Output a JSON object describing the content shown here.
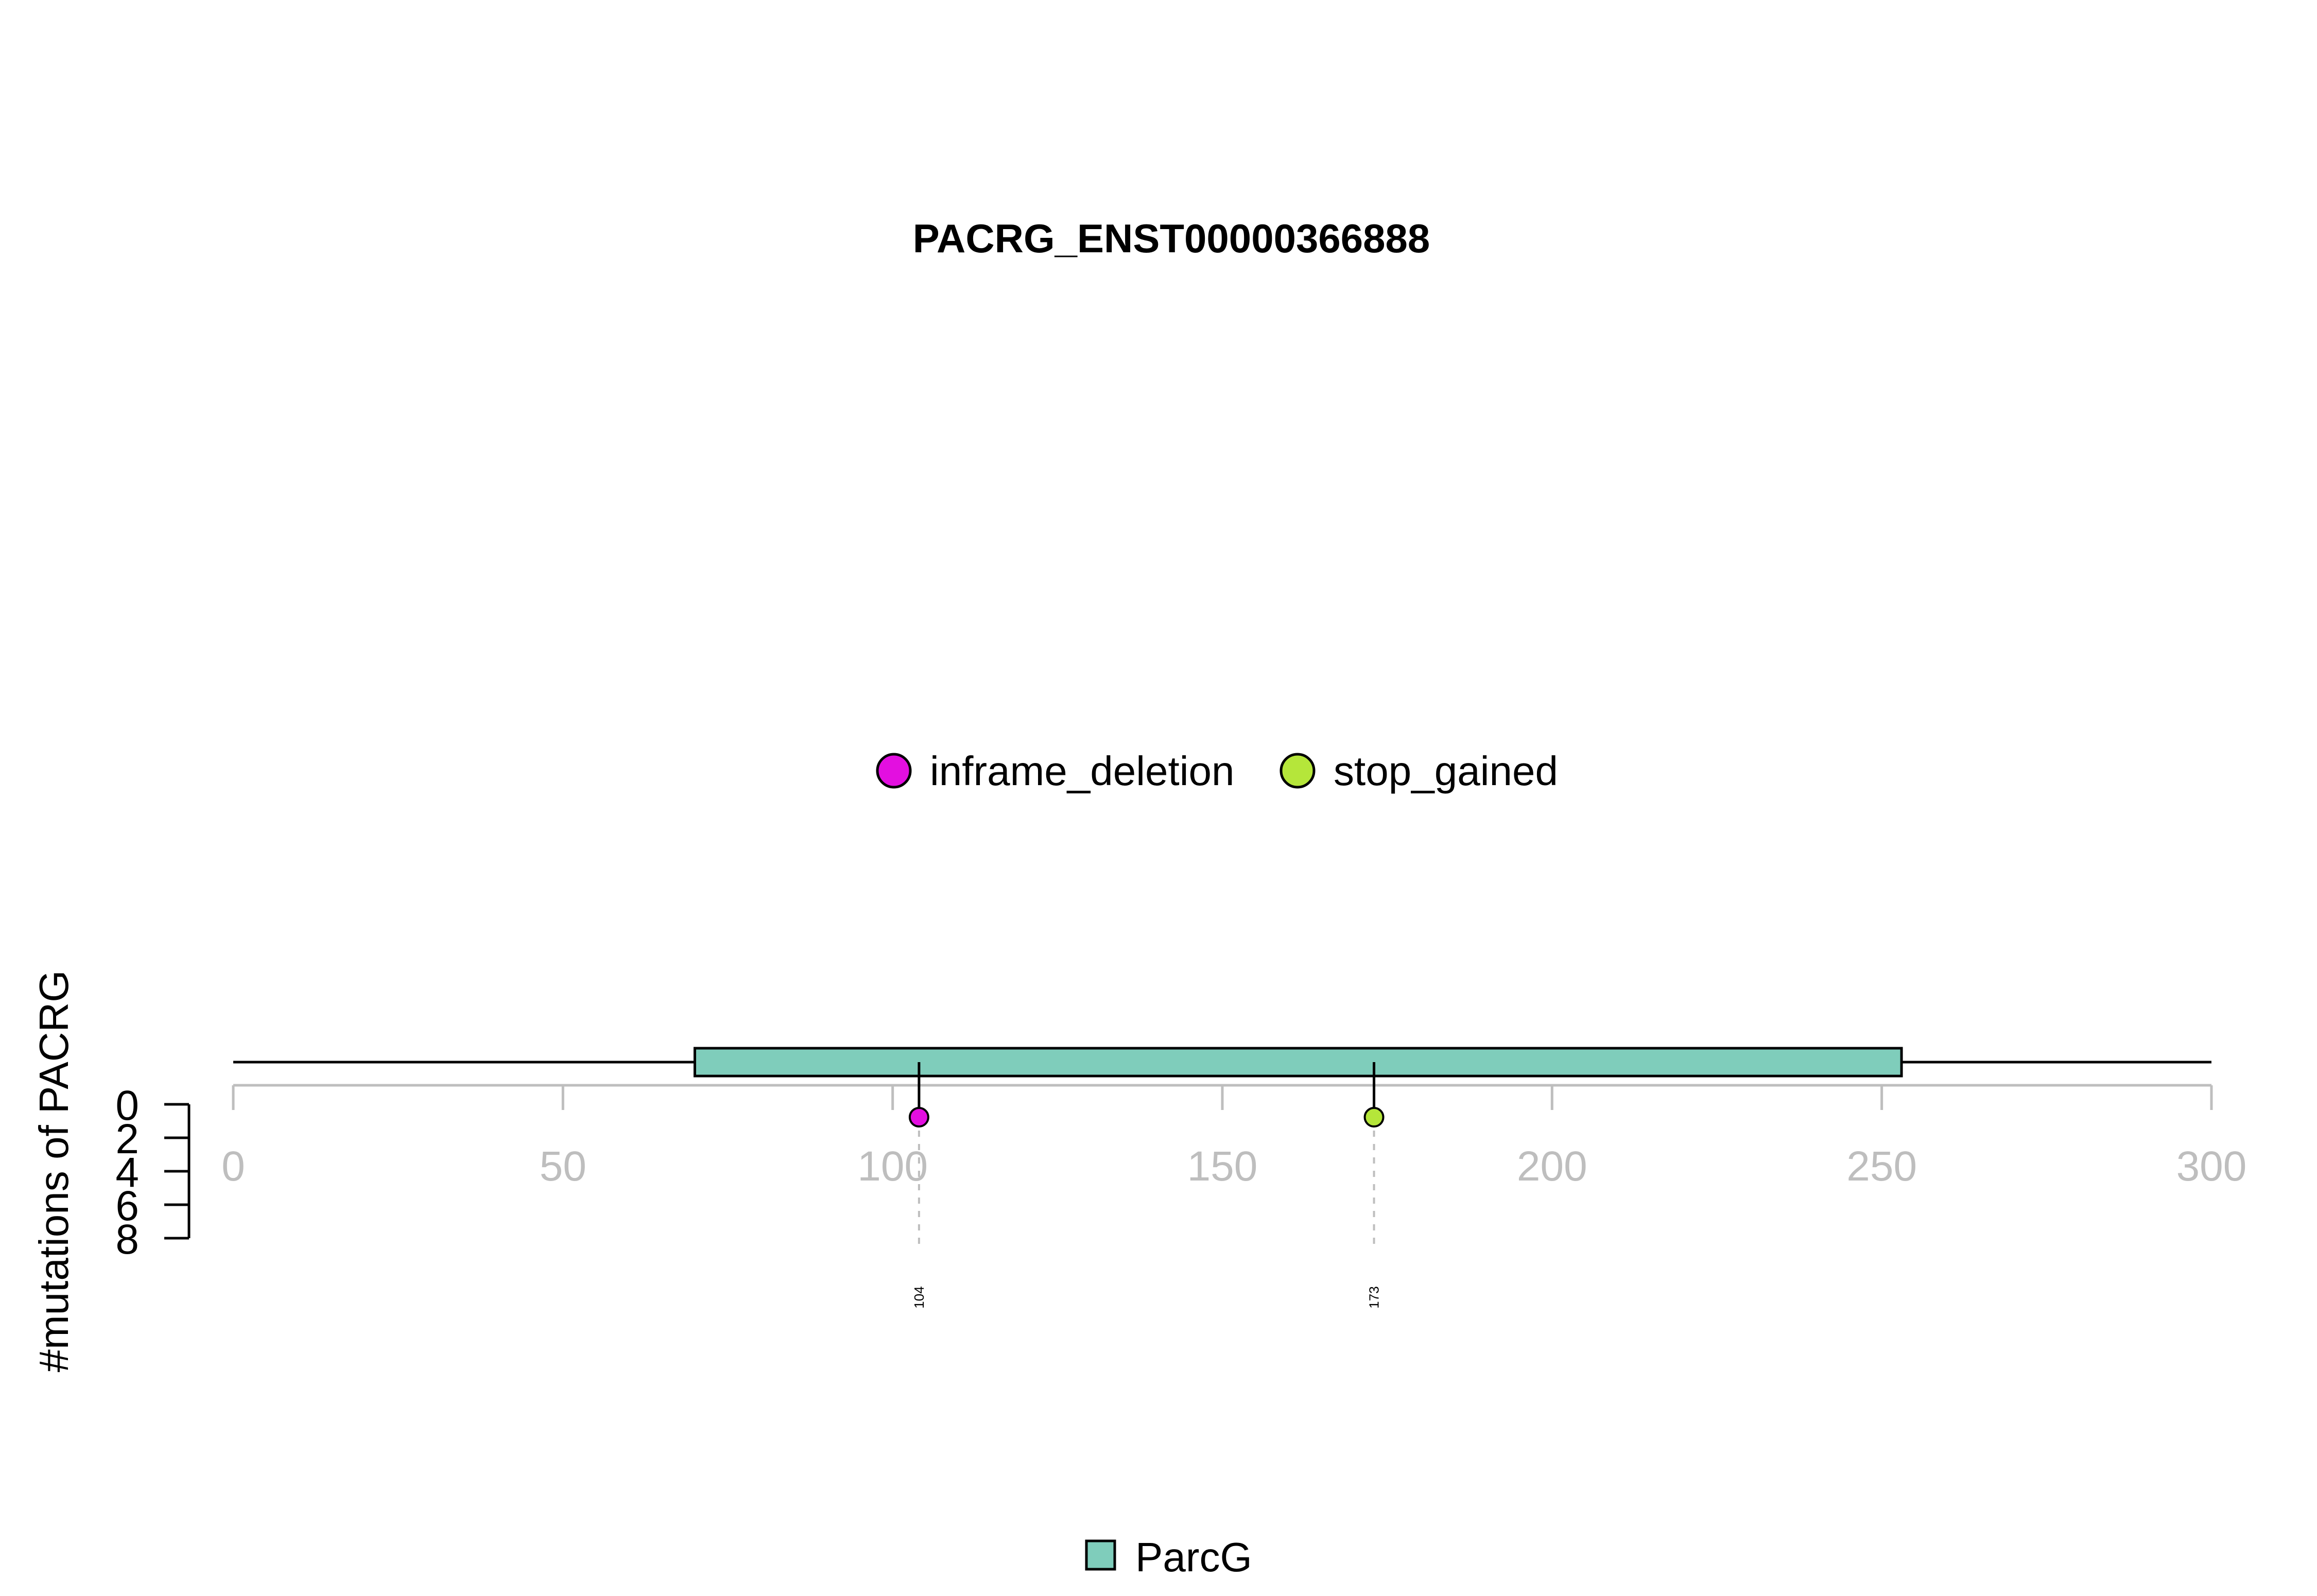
{
  "chart_data": {
    "type": "lollipop",
    "title": "PACRG_ENST00000366888",
    "ylabel": "#mutations of PACRG",
    "xlim": [
      0,
      300
    ],
    "xticks": [
      0,
      50,
      100,
      150,
      200,
      250,
      300
    ],
    "xtick_labels": [
      "0",
      "50",
      "100",
      "150",
      "200",
      "250",
      "300"
    ],
    "yticks": [
      0,
      2,
      4,
      6,
      8
    ],
    "ytick_labels": [
      "0",
      "2",
      "4",
      "6",
      "8"
    ],
    "ylim": [
      0,
      8
    ],
    "protein_length": 300,
    "domains": [
      {
        "name": "ParcG",
        "start": 70,
        "end": 253,
        "color": "#7fcdbb"
      }
    ],
    "mutation_types": [
      {
        "name": "inframe_deletion",
        "color": "#e30fe0"
      },
      {
        "name": "stop_gained",
        "color": "#b5e63a"
      }
    ],
    "mutations": [
      {
        "position": 104,
        "label": "104",
        "count": 1,
        "type": "inframe_deletion"
      },
      {
        "position": 173,
        "label": "173",
        "count": 1,
        "type": "stop_gained"
      }
    ],
    "legend_position": "top-center",
    "domain_legend_position": "bottom-center",
    "grid": false
  }
}
